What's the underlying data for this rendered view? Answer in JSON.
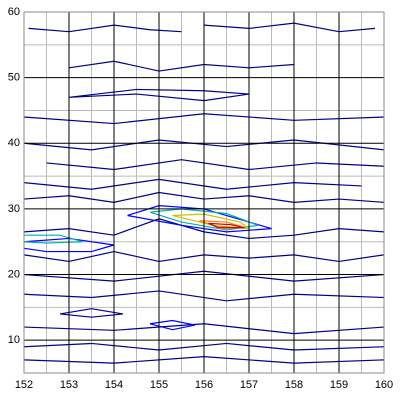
{
  "chart_data": {
    "type": "contour",
    "xlim": [
      152,
      160
    ],
    "ylim": [
      5,
      60
    ],
    "xticks": [
      152,
      153,
      154,
      155,
      156,
      157,
      158,
      159,
      160
    ],
    "yticks": [
      10,
      20,
      30,
      40,
      50,
      60
    ],
    "xminorticks": [
      152.5,
      153.5,
      154.5,
      155.5,
      156.5,
      157.5,
      158.5,
      159.5
    ],
    "yminorticks": [
      15,
      25,
      35,
      45,
      55
    ],
    "grid": true,
    "series": [
      {
        "color": "#00008b",
        "x": [
          152.1,
          153,
          154,
          154.8,
          155.5
        ],
        "y": [
          57.5,
          57,
          58,
          57.3,
          57
        ]
      },
      {
        "color": "#00008b",
        "x": [
          156,
          157,
          158,
          159,
          159.8
        ],
        "y": [
          58,
          57.5,
          58.3,
          57,
          57.5
        ]
      },
      {
        "color": "#00008b",
        "x": [
          153,
          154,
          155,
          156,
          157,
          158
        ],
        "y": [
          51.5,
          52.5,
          51,
          52,
          51.5,
          52
        ]
      },
      {
        "color": "#00008b",
        "x": [
          153,
          154.5,
          156,
          157,
          156,
          154.5,
          153
        ],
        "y": [
          47,
          47.5,
          46.5,
          47.5,
          48,
          48.2,
          47
        ]
      },
      {
        "color": "#00008b",
        "x": [
          152,
          154,
          156,
          158,
          160
        ],
        "y": [
          44,
          43,
          44.5,
          43.5,
          44
        ]
      },
      {
        "color": "#00008b",
        "x": [
          152,
          153.5,
          155,
          156.5,
          158,
          160
        ],
        "y": [
          40,
          39,
          40.5,
          39.5,
          40.5,
          39
        ]
      },
      {
        "color": "#00008b",
        "x": [
          152.5,
          154,
          155.5,
          157,
          158.5,
          160
        ],
        "y": [
          37,
          36,
          37.5,
          36,
          37,
          36.5
        ]
      },
      {
        "color": "#00008b",
        "x": [
          152,
          153.5,
          155,
          156.5,
          158,
          159.5
        ],
        "y": [
          34,
          33,
          34.5,
          33,
          34,
          33.5
        ]
      },
      {
        "color": "#00008b",
        "x": [
          152,
          153,
          154,
          155,
          156,
          157,
          158,
          159,
          160
        ],
        "y": [
          31.5,
          32,
          31,
          32.5,
          31.5,
          32,
          31,
          31.5,
          31
        ]
      },
      {
        "color": "#00008b",
        "x": [
          152,
          153,
          154,
          155,
          156,
          157,
          158,
          159,
          160
        ],
        "y": [
          26.5,
          27,
          26,
          28.5,
          26.5,
          25.5,
          26,
          27,
          26.5
        ]
      },
      {
        "color": "#00008b",
        "x": [
          152,
          153,
          154,
          155,
          156,
          157,
          158,
          159,
          160
        ],
        "y": [
          23,
          22,
          23.5,
          22,
          23,
          22.5,
          23,
          22,
          23
        ]
      },
      {
        "color": "#00008b",
        "x": [
          152,
          154,
          156,
          158,
          160
        ],
        "y": [
          20,
          19,
          20.5,
          19,
          20
        ]
      },
      {
        "color": "#00008b",
        "x": [
          152,
          153.5,
          155,
          156.5,
          158,
          160
        ],
        "y": [
          17,
          16.5,
          17.5,
          16,
          17,
          16.5
        ]
      },
      {
        "color": "#00008b",
        "x": [
          152.8,
          153.5,
          154.2,
          153.5,
          152.8
        ],
        "y": [
          14,
          13.5,
          14,
          14.8,
          14
        ]
      },
      {
        "color": "#00008b",
        "x": [
          152,
          154,
          156,
          158,
          160
        ],
        "y": [
          12,
          11.5,
          12.5,
          11,
          12
        ]
      },
      {
        "color": "#00008b",
        "x": [
          152,
          153.5,
          155,
          156.5,
          158,
          160
        ],
        "y": [
          9,
          9.5,
          8.5,
          9.5,
          8.5,
          9
        ]
      },
      {
        "color": "#00008b",
        "x": [
          152,
          154,
          156,
          158,
          160
        ],
        "y": [
          7,
          6.5,
          7.5,
          6.5,
          7
        ]
      },
      {
        "color": "#0000ff",
        "x": [
          154.3,
          155,
          156,
          157,
          157.5,
          156.5,
          155.5,
          154.3
        ],
        "y": [
          29,
          30.5,
          30,
          28,
          27,
          26.5,
          27.5,
          29
        ]
      },
      {
        "color": "#0000ff",
        "x": [
          152,
          153,
          154,
          153.5,
          152.5,
          152
        ],
        "y": [
          25,
          25.5,
          24.5,
          23.5,
          23.5,
          24
        ]
      },
      {
        "color": "#0000ff",
        "x": [
          154.8,
          155.3,
          155.8,
          155.3,
          154.8
        ],
        "y": [
          12.5,
          13,
          12.3,
          11.6,
          12.5
        ]
      },
      {
        "color": "#00b0b0",
        "x": [
          152,
          152.8,
          153.3,
          152.5,
          152
        ],
        "y": [
          26,
          26,
          25,
          24.8,
          25
        ]
      },
      {
        "color": "#00b0b0",
        "x": [
          154.8,
          155.5,
          156.5,
          157.2,
          156.5,
          155.5,
          154.8
        ],
        "y": [
          29.5,
          30,
          29.3,
          27.5,
          26.8,
          28,
          29.5
        ]
      },
      {
        "color": "#d0c000",
        "x": [
          155.3,
          156,
          156.8,
          157,
          156.2,
          155.3
        ],
        "y": [
          29,
          29.2,
          28,
          27,
          27.5,
          29
        ]
      },
      {
        "color": "#ff8000",
        "x": [
          155.9,
          156.5,
          156.9,
          156.4,
          155.9
        ],
        "y": [
          28.2,
          28,
          27.2,
          27,
          28.2
        ]
      },
      {
        "color": "#d00000",
        "x": [
          156.1,
          156.6,
          156.9,
          156.3,
          156.1
        ],
        "y": [
          27.8,
          27.6,
          27.1,
          27.2,
          27.8
        ]
      }
    ]
  }
}
